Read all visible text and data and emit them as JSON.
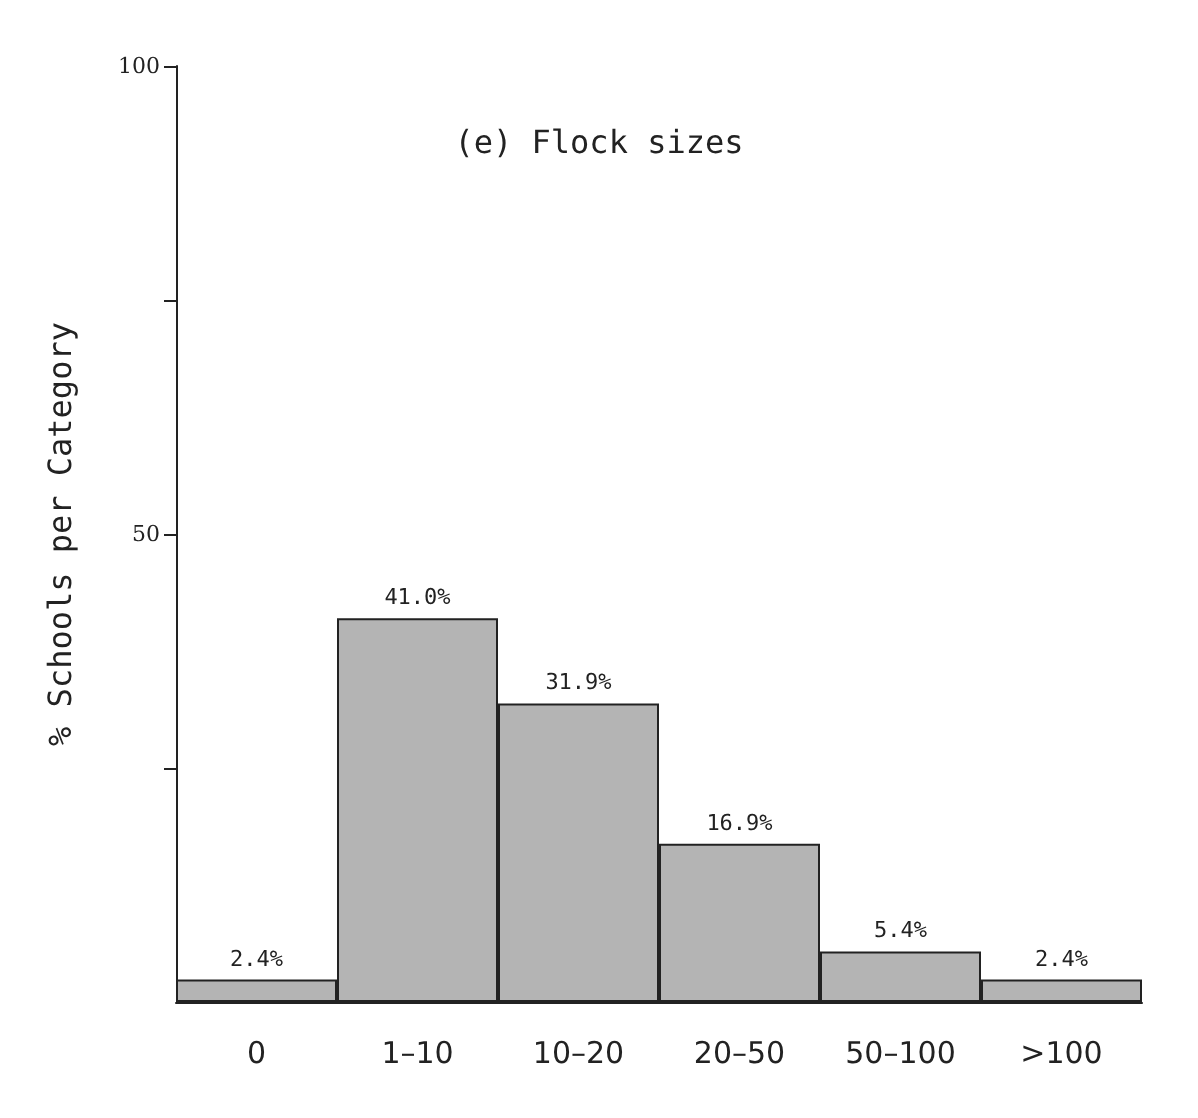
{
  "chart_data": {
    "type": "bar",
    "title": "(e) Flock sizes",
    "ylabel": "% Schools per Category",
    "categories": [
      "0",
      "1–10",
      "10–20",
      "20–50",
      "50–100",
      ">100"
    ],
    "values": [
      2.4,
      41.0,
      31.9,
      16.9,
      5.4,
      2.4
    ],
    "value_labels": [
      "2.4%",
      "41.0%",
      "31.9%",
      "16.9%",
      "5.4%",
      "2.4%"
    ],
    "color": "#b4b4b4",
    "ylim": [
      0,
      100
    ],
    "yticks": [
      {
        "value": 25,
        "label": null
      },
      50,
      {
        "value": 75,
        "label": null
      },
      100
    ],
    "grid": false
  }
}
